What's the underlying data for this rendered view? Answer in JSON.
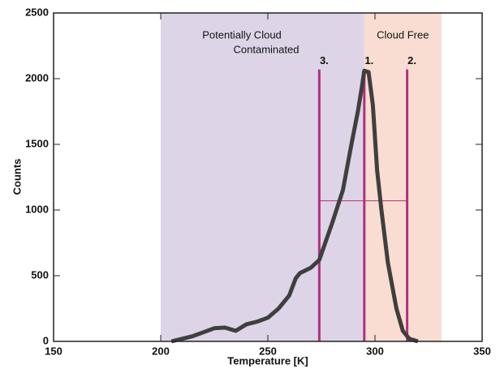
{
  "chart_data": {
    "type": "line",
    "xlabel": "Temperature [K]",
    "ylabel": "Counts",
    "xlim": [
      150,
      350
    ],
    "xticks": [
      150,
      200,
      250,
      300,
      350
    ],
    "ylim": [
      0,
      2500
    ],
    "yticks": [
      0,
      500,
      1000,
      1500,
      2000,
      2500
    ],
    "series": [
      {
        "name": "Counts",
        "color": "#3f3f3f",
        "x": [
          205,
          210,
          215,
          220,
          225,
          230,
          235,
          240,
          245,
          250,
          255,
          260,
          263,
          265,
          270,
          274,
          280,
          285,
          289,
          292,
          294,
          295,
          297,
          299,
          301,
          303,
          306,
          310,
          313,
          316,
          320
        ],
        "values": [
          0,
          20,
          40,
          70,
          100,
          105,
          80,
          130,
          150,
          180,
          250,
          350,
          480,
          520,
          560,
          620,
          900,
          1150,
          1500,
          1750,
          1950,
          2060,
          2050,
          1800,
          1300,
          1000,
          600,
          250,
          80,
          20,
          0
        ]
      }
    ],
    "regions": [
      {
        "label_lines": [
          "Potentially Cloud",
          "Contaminated"
        ],
        "from": 200,
        "to": 295,
        "color": "#ddd5e7"
      },
      {
        "label_lines": [
          "Cloud Free"
        ],
        "from": 295,
        "to": 331,
        "color": "#f9ddd2"
      }
    ],
    "markers": [
      {
        "label": "3.",
        "x": 274,
        "top": 2070
      },
      {
        "label": "1.",
        "x": 295,
        "top": 2070
      },
      {
        "label": "2.",
        "x": 315,
        "top": 2070
      }
    ],
    "marker_color": "#b0307f",
    "hline": {
      "y": 1070,
      "from": 274,
      "to": 315
    }
  }
}
